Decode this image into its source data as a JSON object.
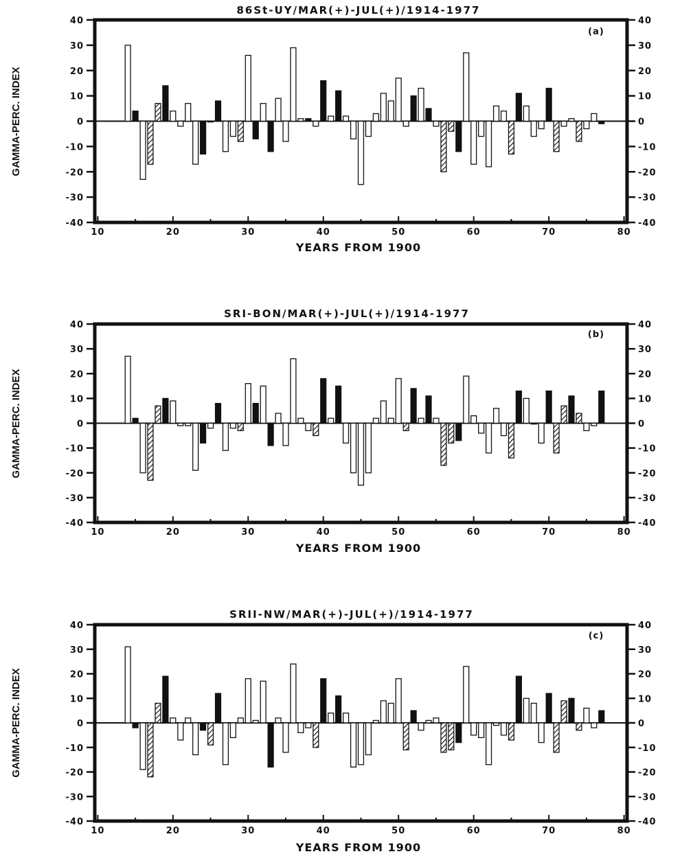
{
  "chart_data": [
    {
      "type": "bar",
      "panel_label": "(a)",
      "title": "86St-UY/MAR(+)-JUL(+)/1914-1977",
      "xlabel": "YEARS FROM 1900",
      "ylabel": "GAMMA-PERC. INDEX",
      "xlim": [
        10,
        80
      ],
      "ylim": [
        -40,
        40
      ],
      "xticks": [
        "10",
        "20",
        "30",
        "40",
        "50",
        "60",
        "70",
        "80"
      ],
      "yticks": [
        "40",
        "30",
        "20",
        "10",
        "0",
        "-10",
        "-20",
        "-30",
        "-40"
      ],
      "x": [
        14,
        15,
        16,
        17,
        18,
        19,
        20,
        21,
        22,
        23,
        24,
        25,
        26,
        27,
        28,
        29,
        30,
        31,
        32,
        33,
        34,
        35,
        36,
        37,
        38,
        39,
        40,
        41,
        42,
        43,
        44,
        45,
        46,
        47,
        48,
        49,
        50,
        51,
        52,
        53,
        54,
        55,
        56,
        57,
        58,
        59,
        60,
        61,
        62,
        63,
        64,
        65,
        66,
        67,
        68,
        69,
        70,
        71,
        72,
        73,
        74,
        75,
        76,
        77
      ],
      "values": [
        30,
        4,
        -23,
        -17,
        7,
        14,
        4,
        -2,
        7,
        -17,
        -13,
        0,
        8,
        -12,
        -6,
        -8,
        26,
        -7,
        7,
        -12,
        9,
        -8,
        29,
        1,
        1,
        -2,
        16,
        2,
        12,
        2,
        -7,
        -25,
        -6,
        3,
        11,
        8,
        17,
        -2,
        10,
        13,
        5,
        -2,
        -20,
        -4,
        -12,
        27,
        -17,
        -6,
        -18,
        6,
        4,
        -13,
        11,
        6,
        -6,
        -3,
        13,
        -12,
        -2,
        1,
        -8,
        -3,
        3,
        -1
      ],
      "styles": [
        "o",
        "f",
        "o",
        "h",
        "h",
        "f",
        "o",
        "o",
        "o",
        "o",
        "f",
        "o",
        "f",
        "o",
        "o",
        "h",
        "o",
        "f",
        "o",
        "f",
        "o",
        "o",
        "o",
        "o",
        "f",
        "o",
        "f",
        "o",
        "f",
        "o",
        "o",
        "o",
        "o",
        "o",
        "o",
        "o",
        "o",
        "o",
        "f",
        "o",
        "f",
        "o",
        "h",
        "h",
        "f",
        "o",
        "o",
        "o",
        "o",
        "o",
        "o",
        "h",
        "f",
        "o",
        "o",
        "o",
        "f",
        "h",
        "o",
        "o",
        "h",
        "o",
        "o",
        "f"
      ]
    },
    {
      "type": "bar",
      "panel_label": "(b)",
      "title": "SRI-BON/MAR(+)-JUL(+)/1914-1977",
      "xlabel": "YEARS FROM 1900",
      "ylabel": "GAMMA-PERC. INDEX",
      "xlim": [
        10,
        80
      ],
      "ylim": [
        -40,
        40
      ],
      "xticks": [
        "10",
        "20",
        "30",
        "40",
        "50",
        "60",
        "70",
        "80"
      ],
      "yticks": [
        "40",
        "30",
        "20",
        "10",
        "0",
        "-10",
        "-20",
        "-30",
        "-40"
      ],
      "x": [
        14,
        15,
        16,
        17,
        18,
        19,
        20,
        21,
        22,
        23,
        24,
        25,
        26,
        27,
        28,
        29,
        30,
        31,
        32,
        33,
        34,
        35,
        36,
        37,
        38,
        39,
        40,
        41,
        42,
        43,
        44,
        45,
        46,
        47,
        48,
        49,
        50,
        51,
        52,
        53,
        54,
        55,
        56,
        57,
        58,
        59,
        60,
        61,
        62,
        63,
        64,
        65,
        66,
        67,
        68,
        69,
        70,
        71,
        72,
        73,
        74,
        75,
        76,
        77
      ],
      "values": [
        27,
        2,
        -20,
        -23,
        7,
        10,
        9,
        -1,
        -1,
        -19,
        -8,
        -2,
        8,
        -11,
        -2,
        -3,
        16,
        8,
        15,
        -9,
        4,
        -9,
        26,
        2,
        -3,
        -5,
        18,
        2,
        15,
        -8,
        -20,
        -25,
        -20,
        2,
        9,
        2,
        18,
        -3,
        14,
        2,
        11,
        2,
        -17,
        -8,
        -7,
        19,
        3,
        -4,
        -12,
        6,
        -5,
        -14,
        13,
        10,
        0,
        -8,
        13,
        -12,
        7,
        11,
        4,
        -3,
        -1,
        13
      ],
      "styles": [
        "o",
        "f",
        "o",
        "h",
        "h",
        "f",
        "o",
        "o",
        "o",
        "o",
        "f",
        "o",
        "f",
        "o",
        "o",
        "h",
        "o",
        "f",
        "o",
        "f",
        "o",
        "o",
        "o",
        "o",
        "o",
        "h",
        "f",
        "o",
        "f",
        "o",
        "o",
        "o",
        "o",
        "o",
        "o",
        "o",
        "o",
        "h",
        "f",
        "o",
        "f",
        "o",
        "h",
        "h",
        "f",
        "o",
        "o",
        "o",
        "o",
        "o",
        "o",
        "h",
        "f",
        "o",
        "o",
        "o",
        "f",
        "h",
        "h",
        "f",
        "h",
        "o",
        "o",
        "f"
      ]
    },
    {
      "type": "bar",
      "panel_label": "(c)",
      "title": "SRII-NW/MAR(+)-JUL(+)/1914-1977",
      "xlabel": "YEARS FROM 1900",
      "ylabel": "GAMMA-PERC. INDEX",
      "xlim": [
        10,
        80
      ],
      "ylim": [
        -40,
        40
      ],
      "xticks": [
        "10",
        "20",
        "30",
        "40",
        "50",
        "60",
        "70",
        "80"
      ],
      "yticks": [
        "40",
        "30",
        "20",
        "10",
        "0",
        "-10",
        "-20",
        "-30",
        "-40"
      ],
      "x": [
        14,
        15,
        16,
        17,
        18,
        19,
        20,
        21,
        22,
        23,
        24,
        25,
        26,
        27,
        28,
        29,
        30,
        31,
        32,
        33,
        34,
        35,
        36,
        37,
        38,
        39,
        40,
        41,
        42,
        43,
        44,
        45,
        46,
        47,
        48,
        49,
        50,
        51,
        52,
        53,
        54,
        55,
        56,
        57,
        58,
        59,
        60,
        61,
        62,
        63,
        64,
        65,
        66,
        67,
        68,
        69,
        70,
        71,
        72,
        73,
        74,
        75,
        76,
        77
      ],
      "values": [
        31,
        -2,
        -19,
        -22,
        8,
        19,
        2,
        -7,
        2,
        -13,
        -3,
        -9,
        12,
        -17,
        -6,
        2,
        18,
        1,
        17,
        -18,
        2,
        -12,
        24,
        -4,
        -2,
        -10,
        18,
        4,
        11,
        4,
        -18,
        -17,
        -13,
        1,
        9,
        8,
        18,
        -11,
        5,
        -3,
        1,
        2,
        -12,
        -11,
        -8,
        23,
        -5,
        -6,
        -17,
        -1,
        -5,
        -7,
        19,
        10,
        8,
        -8,
        12,
        -12,
        9,
        10,
        -3,
        6,
        -2,
        5
      ],
      "styles": [
        "o",
        "f",
        "o",
        "h",
        "h",
        "f",
        "o",
        "o",
        "o",
        "o",
        "f",
        "h",
        "f",
        "o",
        "o",
        "o",
        "o",
        "o",
        "o",
        "f",
        "o",
        "o",
        "o",
        "o",
        "o",
        "h",
        "f",
        "o",
        "f",
        "o",
        "o",
        "o",
        "o",
        "o",
        "o",
        "o",
        "o",
        "h",
        "f",
        "o",
        "o",
        "o",
        "h",
        "h",
        "f",
        "o",
        "o",
        "o",
        "o",
        "o",
        "o",
        "h",
        "f",
        "o",
        "o",
        "o",
        "f",
        "h",
        "h",
        "f",
        "h",
        "o",
        "o",
        "f"
      ]
    }
  ]
}
